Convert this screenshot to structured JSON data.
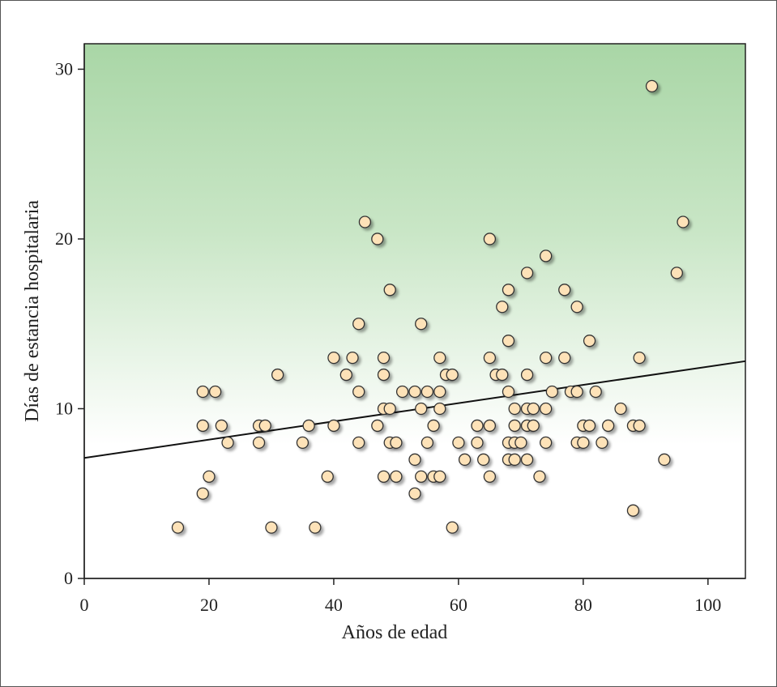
{
  "chart_data": {
    "type": "scatter",
    "title": "",
    "xlabel": "Años de edad",
    "ylabel": "Días de estancia hospitalaria",
    "xlim": [
      0,
      106
    ],
    "ylim": [
      0,
      31.5
    ],
    "xticks": [
      0,
      20,
      40,
      60,
      80,
      100
    ],
    "yticks": [
      0,
      10,
      20,
      30
    ],
    "xtick_labels": [
      "0",
      "20",
      "40",
      "60",
      "80",
      "100"
    ],
    "ytick_labels": [
      "0",
      "10",
      "20",
      "30"
    ],
    "grid": false,
    "background_gradient": {
      "top": "#a9d6a6",
      "bottom": "#ffffff"
    },
    "point_color": "#fde2b8",
    "point_stroke": "#333333",
    "points": [
      [
        15,
        3
      ],
      [
        19,
        11
      ],
      [
        19,
        9
      ],
      [
        19,
        5
      ],
      [
        20,
        6
      ],
      [
        21,
        11
      ],
      [
        22,
        9
      ],
      [
        23,
        8
      ],
      [
        28,
        9
      ],
      [
        28,
        8
      ],
      [
        29,
        9
      ],
      [
        30,
        3
      ],
      [
        31,
        12
      ],
      [
        35,
        8
      ],
      [
        36,
        9
      ],
      [
        37,
        3
      ],
      [
        39,
        6
      ],
      [
        40,
        13
      ],
      [
        40,
        9
      ],
      [
        42,
        12
      ],
      [
        43,
        13
      ],
      [
        44,
        15
      ],
      [
        44,
        11
      ],
      [
        44,
        8
      ],
      [
        45,
        21
      ],
      [
        47,
        20
      ],
      [
        47,
        9
      ],
      [
        48,
        13
      ],
      [
        48,
        12
      ],
      [
        48,
        10
      ],
      [
        48,
        6
      ],
      [
        49,
        17
      ],
      [
        49,
        10
      ],
      [
        49,
        8
      ],
      [
        50,
        8
      ],
      [
        50,
        6
      ],
      [
        51,
        11
      ],
      [
        53,
        11
      ],
      [
        53,
        7
      ],
      [
        53,
        5
      ],
      [
        54,
        15
      ],
      [
        54,
        10
      ],
      [
        54,
        6
      ],
      [
        55,
        11
      ],
      [
        55,
        8
      ],
      [
        56,
        9
      ],
      [
        56,
        6
      ],
      [
        57,
        13
      ],
      [
        57,
        11
      ],
      [
        57,
        10
      ],
      [
        57,
        6
      ],
      [
        58,
        12
      ],
      [
        59,
        12
      ],
      [
        59,
        3
      ],
      [
        60,
        8
      ],
      [
        61,
        7
      ],
      [
        63,
        9
      ],
      [
        63,
        8
      ],
      [
        64,
        7
      ],
      [
        65,
        20
      ],
      [
        65,
        13
      ],
      [
        65,
        9
      ],
      [
        65,
        6
      ],
      [
        66,
        12
      ],
      [
        67,
        16
      ],
      [
        67,
        12
      ],
      [
        68,
        17
      ],
      [
        68,
        14
      ],
      [
        68,
        11
      ],
      [
        68,
        8
      ],
      [
        68,
        7
      ],
      [
        69,
        10
      ],
      [
        69,
        9
      ],
      [
        69,
        8
      ],
      [
        69,
        7
      ],
      [
        70,
        8
      ],
      [
        71,
        18
      ],
      [
        71,
        12
      ],
      [
        71,
        10
      ],
      [
        71,
        9
      ],
      [
        71,
        7
      ],
      [
        72,
        10
      ],
      [
        72,
        9
      ],
      [
        73,
        6
      ],
      [
        74,
        19
      ],
      [
        74,
        13
      ],
      [
        74,
        10
      ],
      [
        74,
        8
      ],
      [
        75,
        11
      ],
      [
        77,
        17
      ],
      [
        77,
        13
      ],
      [
        78,
        11
      ],
      [
        79,
        16
      ],
      [
        79,
        11
      ],
      [
        79,
        8
      ],
      [
        80,
        9
      ],
      [
        80,
        8
      ],
      [
        81,
        14
      ],
      [
        81,
        9
      ],
      [
        82,
        11
      ],
      [
        83,
        8
      ],
      [
        84,
        9
      ],
      [
        86,
        10
      ],
      [
        88,
        9
      ],
      [
        88,
        4
      ],
      [
        89,
        13
      ],
      [
        89,
        9
      ],
      [
        91,
        29
      ],
      [
        93,
        7
      ],
      [
        95,
        18
      ],
      [
        96,
        21
      ]
    ],
    "regression_line": {
      "x": [
        0,
        106
      ],
      "y": [
        7.1,
        12.8
      ]
    }
  }
}
